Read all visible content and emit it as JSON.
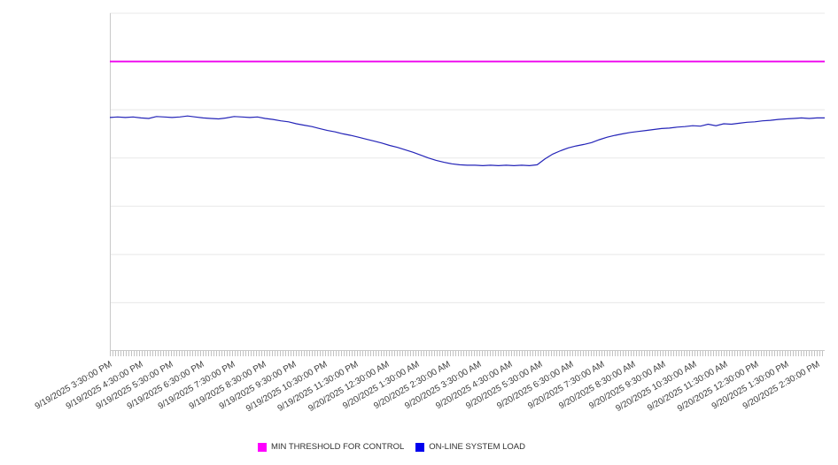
{
  "chart_data": {
    "type": "line",
    "title": "",
    "xlabel": "",
    "ylabel": "",
    "x_window": {
      "start": "9/19/2025 3:30:00 PM",
      "end": "9/20/2025 2:30:00 PM",
      "sample_interval_minutes": 15
    },
    "x_labels": [
      "9/19/2025 3:30:00 PM",
      "9/19/2025 4:30:00 PM",
      "9/19/2025 5:30:00 PM",
      "9/19/2025 6:30:00 PM",
      "9/19/2025 7:30:00 PM",
      "9/19/2025 8:30:00 PM",
      "9/19/2025 9:30:00 PM",
      "9/19/2025 10:30:00 PM",
      "9/19/2025 11:30:00 PM",
      "9/20/2025 12:30:00 AM",
      "9/20/2025 1:30:00 AM",
      "9/20/2025 2:30:00 AM",
      "9/20/2025 3:30:00 AM",
      "9/20/2025 4:30:00 AM",
      "9/20/2025 5:30:00 AM",
      "9/20/2025 6:30:00 AM",
      "9/20/2025 7:30:00 AM",
      "9/20/2025 8:30:00 AM",
      "9/20/2025 9:30:00 AM",
      "9/20/2025 10:30:00 AM",
      "9/20/2025 11:30:00 AM",
      "9/20/2025 12:30:00 PM",
      "9/20/2025 1:30:00 PM",
      "9/20/2025 2:30:00 PM"
    ],
    "y_axis": {
      "labels_visible": false,
      "ylim": [
        0,
        7
      ],
      "gridline_interval": 1,
      "grid": true
    },
    "legend": [
      {
        "label": "MIN THRESHOLD FOR CONTROL",
        "color": "#ff00ff"
      },
      {
        "label": "ON-LINE SYSTEM LOAD",
        "color": "#0000ee"
      }
    ],
    "legend_position": "bottom-center",
    "series": [
      {
        "name": "MIN THRESHOLD FOR CONTROL",
        "type": "threshold-line",
        "color": "#ee00ee",
        "value": 6.0
      },
      {
        "name": "ON-LINE SYSTEM LOAD",
        "type": "line",
        "color": "#2424b8",
        "values": [
          4.84,
          4.85,
          4.84,
          4.85,
          4.83,
          4.82,
          4.86,
          4.85,
          4.84,
          4.85,
          4.87,
          4.85,
          4.83,
          4.82,
          4.81,
          4.83,
          4.86,
          4.85,
          4.84,
          4.85,
          4.82,
          4.8,
          4.77,
          4.75,
          4.71,
          4.68,
          4.65,
          4.61,
          4.57,
          4.54,
          4.5,
          4.47,
          4.43,
          4.39,
          4.35,
          4.31,
          4.26,
          4.22,
          4.17,
          4.12,
          4.06,
          4.0,
          3.95,
          3.91,
          3.88,
          3.86,
          3.85,
          3.85,
          3.84,
          3.85,
          3.84,
          3.85,
          3.84,
          3.85,
          3.84,
          3.86,
          3.98,
          4.08,
          4.15,
          4.21,
          4.25,
          4.28,
          4.32,
          4.38,
          4.43,
          4.47,
          4.5,
          4.53,
          4.55,
          4.57,
          4.59,
          4.61,
          4.62,
          4.64,
          4.65,
          4.67,
          4.66,
          4.7,
          4.67,
          4.71,
          4.7,
          4.72,
          4.74,
          4.75,
          4.77,
          4.78,
          4.8,
          4.81,
          4.82,
          4.83,
          4.82,
          4.83,
          4.83
        ]
      }
    ]
  }
}
